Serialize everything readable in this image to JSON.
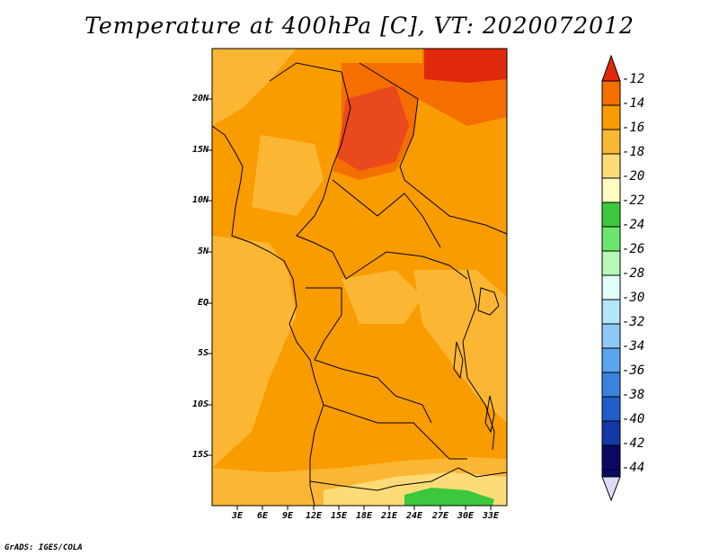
{
  "title": "Temperature at 400hPa [C], VT: 2020072012",
  "credit": "GrADS: IGES/COLA",
  "y_ticks": [
    "20N",
    "15N",
    "10N",
    "5N",
    "EQ",
    "5S",
    "10S",
    "15S"
  ],
  "x_ticks": [
    "3E",
    "6E",
    "9E",
    "12E",
    "15E",
    "18E",
    "21E",
    "24E",
    "27E",
    "30E",
    "33E"
  ],
  "colorbar": {
    "labels": [
      "-12",
      "-14",
      "-16",
      "-18",
      "-20",
      "-22",
      "-24",
      "-26",
      "-28",
      "-30",
      "-32",
      "-34",
      "-36",
      "-38",
      "-40",
      "-42",
      "-44"
    ],
    "colors": [
      "#e0290b",
      "#f46e00",
      "#f99c00",
      "#fbb733",
      "#fddc78",
      "#fffcc2",
      "#3cc83c",
      "#6de66d",
      "#b4f9b4",
      "#e1fffa",
      "#b4e6fa",
      "#90c8f5",
      "#5aa6ec",
      "#3a82dc",
      "#1f5ec8",
      "#1239a8",
      "#0a0a64",
      "#dcdcf8"
    ]
  },
  "field_colors": {
    "minus_12_14": "#e0290b",
    "minus_14_16": "#f99c00",
    "minus_16_18": "#fbb733",
    "minus_18_20": "#fddc78",
    "minus_20_22": "#fffcc2",
    "minus_22_24": "#3cc83c"
  }
}
